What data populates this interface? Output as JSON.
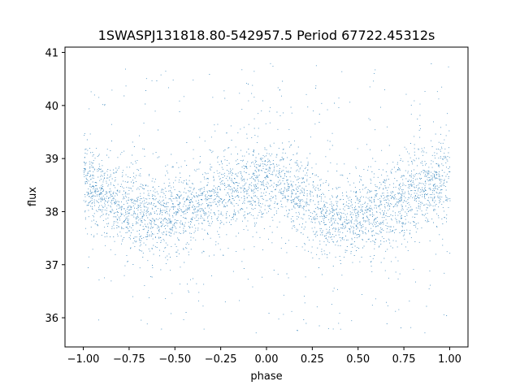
{
  "chart_data": {
    "type": "scatter",
    "title": "1SWASPJ131818.80-542957.5 Period 67722.45312s",
    "xlabel": "phase",
    "ylabel": "flux",
    "xlim": [
      -1.1,
      1.1
    ],
    "ylim": [
      35.45,
      41.1
    ],
    "x_ticks": [
      -1.0,
      -0.75,
      -0.5,
      -0.25,
      0.0,
      0.25,
      0.5,
      0.75,
      1.0
    ],
    "x_tick_labels": [
      "−1.00",
      "−0.75",
      "−0.50",
      "−0.25",
      "0.00",
      "0.25",
      "0.50",
      "0.75",
      "1.00"
    ],
    "y_ticks": [
      36,
      37,
      38,
      39,
      40,
      41
    ],
    "y_tick_labels": [
      "36",
      "37",
      "38",
      "39",
      "40",
      "41"
    ],
    "grid": false,
    "point_color": "#1f77b4",
    "series": [
      {
        "x": [
          -1.0,
          -0.95,
          -0.9,
          -0.85,
          -0.8,
          -0.75,
          -0.7,
          -0.65,
          -0.6,
          -0.55,
          -0.5,
          -0.45,
          -0.4,
          -0.35,
          -0.3,
          -0.25,
          -0.2,
          -0.15,
          -0.1,
          -0.05,
          0.0,
          0.05,
          0.1,
          0.15,
          0.2,
          0.25,
          0.3,
          0.35,
          0.4,
          0.45,
          0.5,
          0.55,
          0.6,
          0.65,
          0.7,
          0.75,
          0.8,
          0.85,
          0.9,
          0.95,
          1.0
        ],
        "y": [
          38.5,
          38.45,
          38.35,
          38.25,
          38.15,
          38.05,
          38.0,
          37.95,
          37.9,
          37.9,
          37.95,
          38.0,
          38.05,
          38.15,
          38.25,
          38.3,
          38.4,
          38.45,
          38.5,
          38.55,
          38.6,
          38.55,
          38.45,
          38.35,
          38.25,
          38.1,
          38.0,
          37.95,
          37.9,
          37.9,
          37.9,
          37.95,
          38.0,
          38.05,
          38.15,
          38.25,
          38.35,
          38.4,
          38.45,
          38.5,
          38.55
        ]
      }
    ],
    "flux_range": [
      35.7,
      40.8
    ],
    "core_scatter": 0.35
  }
}
